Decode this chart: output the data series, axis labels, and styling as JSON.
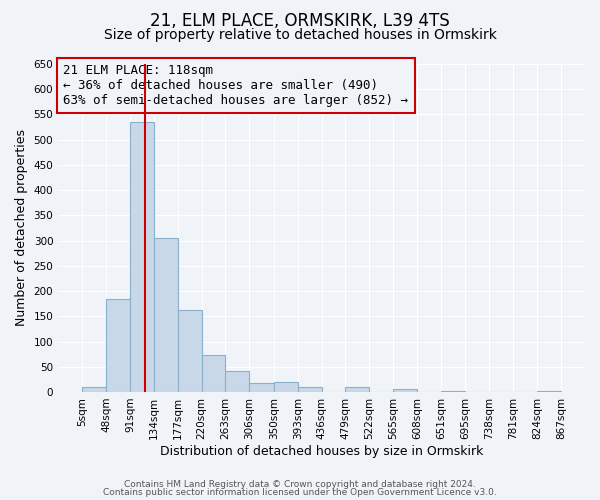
{
  "title": "21, ELM PLACE, ORMSKIRK, L39 4TS",
  "subtitle": "Size of property relative to detached houses in Ormskirk",
  "xlabel": "Distribution of detached houses by size in Ormskirk",
  "ylabel": "Number of detached properties",
  "bar_color": "#c8d8e8",
  "bar_edge_color": "#8ab0cc",
  "bin_edges": [
    5,
    48,
    91,
    134,
    177,
    220,
    263,
    306,
    350,
    393,
    436,
    479,
    522,
    565,
    608,
    651,
    695,
    738,
    781,
    824,
    867
  ],
  "bar_heights": [
    10,
    185,
    535,
    305,
    163,
    73,
    42,
    18,
    20,
    10,
    0,
    10,
    0,
    5,
    0,
    2,
    0,
    0,
    0,
    2
  ],
  "tick_labels": [
    "5sqm",
    "48sqm",
    "91sqm",
    "134sqm",
    "177sqm",
    "220sqm",
    "263sqm",
    "306sqm",
    "350sqm",
    "393sqm",
    "436sqm",
    "479sqm",
    "522sqm",
    "565sqm",
    "608sqm",
    "651sqm",
    "695sqm",
    "738sqm",
    "781sqm",
    "824sqm",
    "867sqm"
  ],
  "property_size": 118,
  "vline_color": "#cc0000",
  "annotation_line1": "21 ELM PLACE: 118sqm",
  "annotation_line2": "← 36% of detached houses are smaller (490)",
  "annotation_line3": "63% of semi-detached houses are larger (852) →",
  "annotation_box_edgecolor": "#cc0000",
  "ylim": [
    0,
    650
  ],
  "yticks": [
    0,
    50,
    100,
    150,
    200,
    250,
    300,
    350,
    400,
    450,
    500,
    550,
    600,
    650
  ],
  "footer1": "Contains HM Land Registry data © Crown copyright and database right 2024.",
  "footer2": "Contains public sector information licensed under the Open Government Licence v3.0.",
  "background_color": "#f0f4f8",
  "grid_color": "#ffffff",
  "title_fontsize": 12,
  "subtitle_fontsize": 10,
  "axis_label_fontsize": 9,
  "tick_fontsize": 7.5,
  "annotation_fontsize": 9,
  "footer_fontsize": 6.5
}
